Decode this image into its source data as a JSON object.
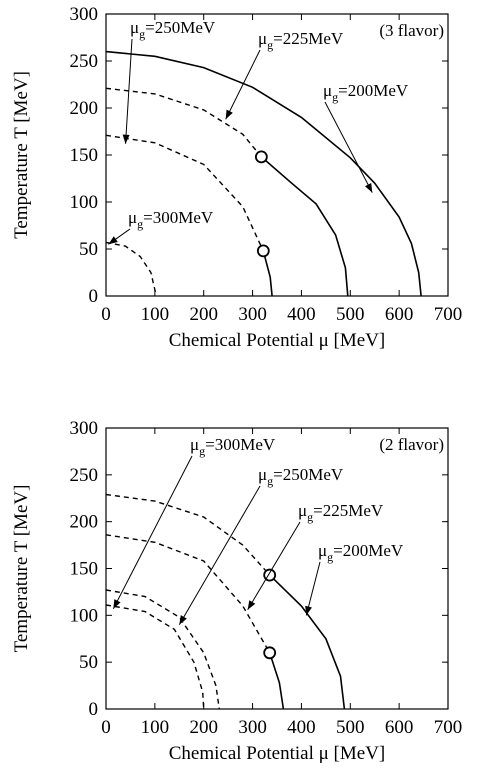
{
  "chart_data": [
    {
      "type": "line",
      "title": "",
      "corner_label": "(3 flavor)",
      "xlabel": "Chemical Potential μ [MeV]",
      "ylabel": "Temperature T [MeV]",
      "xlim": [
        0,
        700
      ],
      "ylim": [
        0,
        300
      ],
      "xticks": [
        "0",
        "100",
        "200",
        "300",
        "400",
        "500",
        "600",
        "700"
      ],
      "yticks": [
        "0",
        "50",
        "100",
        "150",
        "200",
        "250",
        "300"
      ],
      "grid": false,
      "series": [
        {
          "style": "solid",
          "label_prefix": "μ",
          "label_sub": "g",
          "label_value": "=200MeV",
          "label_pos": "outer-right",
          "points": [
            [
              0,
              260
            ],
            [
              100,
              255
            ],
            [
              200,
              243
            ],
            [
              300,
              222
            ],
            [
              400,
              190
            ],
            [
              500,
              147
            ],
            [
              550,
              120
            ],
            [
              600,
              84
            ],
            [
              625,
              56
            ],
            [
              640,
              25
            ],
            [
              645,
              0
            ]
          ]
        },
        {
          "style": "mixed",
          "label_prefix": "μ",
          "label_sub": "g",
          "label_value": "=225MeV",
          "critical_point": [
            318,
            148
          ],
          "points": [
            [
              0,
              221
            ],
            [
              100,
              215
            ],
            [
              200,
              198
            ],
            [
              280,
              172
            ],
            [
              318,
              148
            ],
            [
              380,
              120
            ],
            [
              430,
              98
            ],
            [
              470,
              65
            ],
            [
              490,
              30
            ],
            [
              495,
              0
            ]
          ]
        },
        {
          "style": "mixed",
          "label_prefix": "μ",
          "label_sub": "g",
          "label_value": "=250MeV",
          "critical_point": [
            322,
            48
          ],
          "points": [
            [
              0,
              171
            ],
            [
              100,
              163
            ],
            [
              200,
              140
            ],
            [
              280,
              95
            ],
            [
              322,
              48
            ],
            [
              336,
              20
            ],
            [
              340,
              0
            ]
          ]
        },
        {
          "style": "dashed",
          "label_prefix": "μ",
          "label_sub": "g",
          "label_value": "=300MeV",
          "points": [
            [
              0,
              57
            ],
            [
              40,
              53
            ],
            [
              70,
              42
            ],
            [
              92,
              25
            ],
            [
              103,
              0
            ]
          ]
        }
      ]
    },
    {
      "type": "line",
      "title": "",
      "corner_label": "(2 flavor)",
      "xlabel": "Chemical Potential μ [MeV]",
      "ylabel": "Temperature T [MeV]",
      "xlim": [
        0,
        700
      ],
      "ylim": [
        0,
        300
      ],
      "xticks": [
        "0",
        "100",
        "200",
        "300",
        "400",
        "500",
        "600",
        "700"
      ],
      "yticks": [
        "0",
        "50",
        "100",
        "150",
        "200",
        "250",
        "300"
      ],
      "grid": false,
      "series": [
        {
          "style": "mixed",
          "label_prefix": "μ",
          "label_sub": "g",
          "label_value": "=200MeV",
          "critical_point": [
            335,
            143
          ],
          "points": [
            [
              0,
              229
            ],
            [
              100,
              222
            ],
            [
              200,
              205
            ],
            [
              280,
              175
            ],
            [
              335,
              143
            ],
            [
              400,
              110
            ],
            [
              450,
              75
            ],
            [
              480,
              35
            ],
            [
              488,
              0
            ]
          ]
        },
        {
          "style": "mixed",
          "label_prefix": "μ",
          "label_sub": "g",
          "label_value": "=225MeV",
          "critical_point": [
            335,
            60
          ],
          "points": [
            [
              0,
              186
            ],
            [
              100,
              178
            ],
            [
              200,
              158
            ],
            [
              280,
              110
            ],
            [
              335,
              60
            ],
            [
              355,
              28
            ],
            [
              363,
              0
            ]
          ]
        },
        {
          "style": "dashed",
          "label_prefix": "μ",
          "label_sub": "g",
          "label_value": "=250MeV",
          "points": [
            [
              0,
              127
            ],
            [
              80,
              120
            ],
            [
              150,
              98
            ],
            [
              200,
              60
            ],
            [
              225,
              25
            ],
            [
              232,
              0
            ]
          ]
        },
        {
          "style": "dashed",
          "label_prefix": "μ",
          "label_sub": "g",
          "label_value": "=300MeV",
          "points": [
            [
              0,
              111
            ],
            [
              80,
              104
            ],
            [
              140,
              85
            ],
            [
              180,
              50
            ],
            [
              198,
              18
            ],
            [
              200,
              0
            ]
          ]
        }
      ]
    }
  ]
}
